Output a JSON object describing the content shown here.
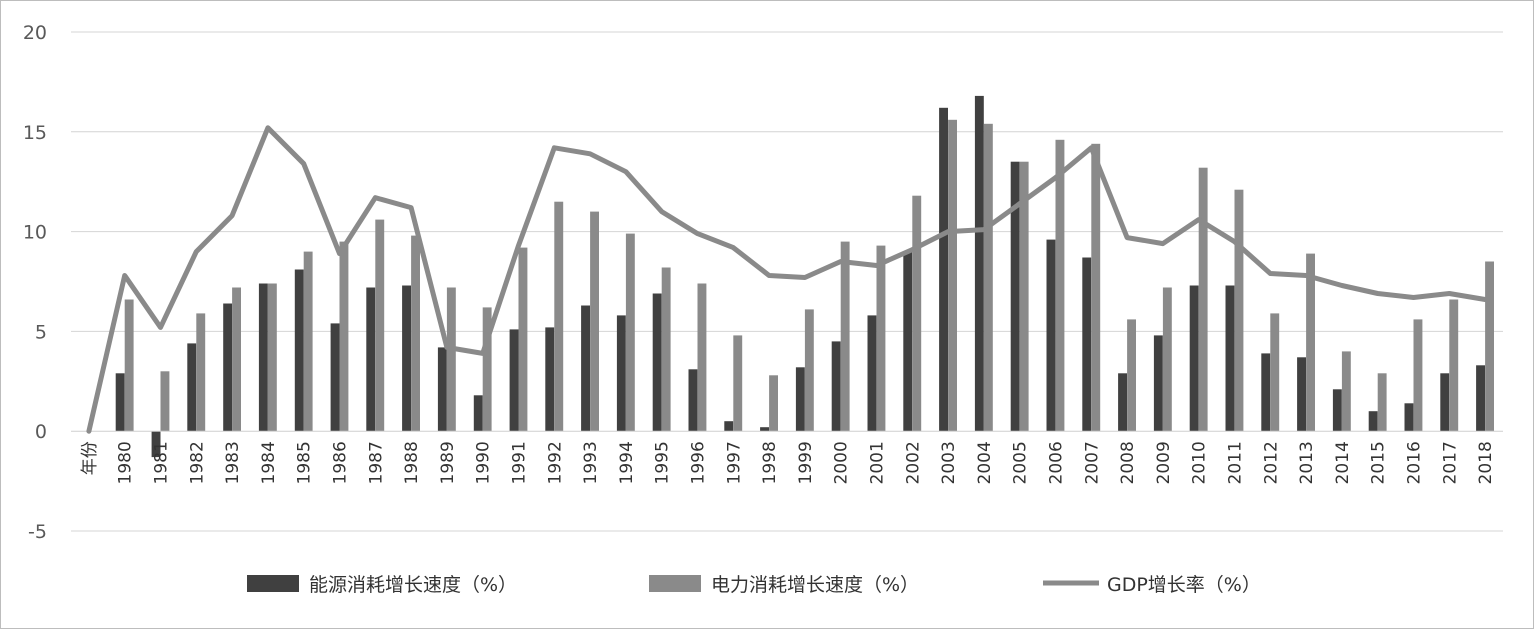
{
  "chart_data": {
    "type": "bar",
    "categories": [
      "年份",
      "1980",
      "1981",
      "1982",
      "1983",
      "1984",
      "1985",
      "1986",
      "1987",
      "1988",
      "1989",
      "1990",
      "1991",
      "1992",
      "1993",
      "1994",
      "1995",
      "1996",
      "1997",
      "1998",
      "1999",
      "2000",
      "2001",
      "2002",
      "2003",
      "2004",
      "2005",
      "2006",
      "2007",
      "2008",
      "2009",
      "2010",
      "2011",
      "2012",
      "2013",
      "2014",
      "2015",
      "2016",
      "2017",
      "2018"
    ],
    "series": [
      {
        "name": "能源消耗增长速度（%）",
        "kind": "bar",
        "color": "#404040",
        "values": [
          null,
          2.9,
          -1.3,
          4.4,
          6.4,
          7.4,
          8.1,
          5.4,
          7.2,
          7.3,
          4.2,
          1.8,
          5.1,
          5.2,
          6.3,
          5.8,
          6.9,
          3.1,
          0.5,
          0.2,
          3.2,
          4.5,
          5.8,
          9.0,
          16.2,
          16.8,
          13.5,
          9.6,
          8.7,
          2.9,
          4.8,
          7.3,
          7.3,
          3.9,
          3.7,
          2.1,
          1.0,
          1.4,
          2.9,
          3.3
        ]
      },
      {
        "name": "电力消耗增长速度（%）",
        "kind": "bar",
        "color": "#8a8a8a",
        "values": [
          null,
          6.6,
          3.0,
          5.9,
          7.2,
          7.4,
          9.0,
          9.5,
          10.6,
          9.8,
          7.2,
          6.2,
          9.2,
          11.5,
          11.0,
          9.9,
          8.2,
          7.4,
          4.8,
          2.8,
          6.1,
          9.5,
          9.3,
          11.8,
          15.6,
          15.4,
          13.5,
          14.6,
          14.4,
          5.6,
          7.2,
          13.2,
          12.1,
          5.9,
          8.9,
          4.0,
          2.9,
          5.6,
          6.6,
          8.5
        ]
      },
      {
        "name": "GDP增长率（%）",
        "kind": "line",
        "color": "#8a8a8a",
        "values": [
          0,
          7.8,
          5.2,
          9.0,
          10.8,
          15.2,
          13.4,
          8.9,
          11.7,
          11.2,
          4.2,
          3.9,
          9.3,
          14.2,
          13.9,
          13.0,
          11.0,
          9.9,
          9.2,
          7.8,
          7.7,
          8.5,
          8.3,
          9.1,
          10.0,
          10.1,
          11.4,
          12.7,
          14.2,
          9.7,
          9.4,
          10.6,
          9.5,
          7.9,
          7.8,
          7.3,
          6.9,
          6.7,
          6.9,
          6.6
        ]
      }
    ],
    "yaxis": {
      "min": -5,
      "max": 20,
      "ticks": [
        "-5",
        "0",
        "5",
        "10",
        "15",
        "20"
      ]
    },
    "grid": true,
    "legend_position": "bottom"
  }
}
